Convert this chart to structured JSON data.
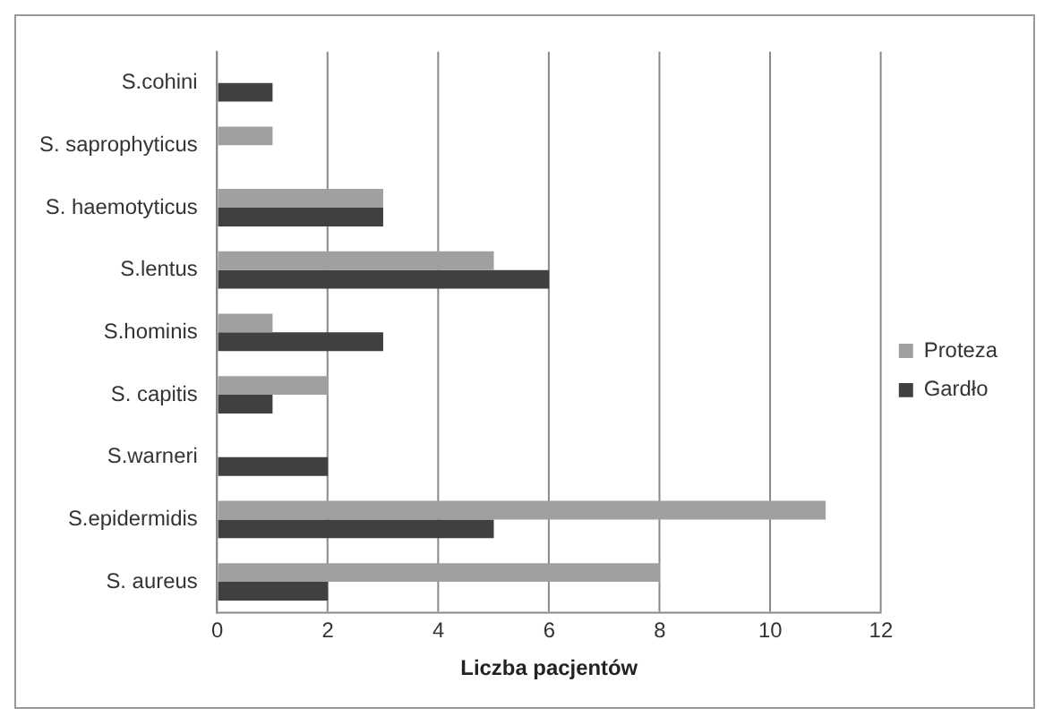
{
  "chart_data": {
    "type": "bar",
    "orientation": "horizontal",
    "xlabel": "Liczba pacjentów",
    "categories": [
      "S.cohini",
      "S. saprophyticus",
      "S. haemotyticus",
      "S.lentus",
      "S.hominis",
      "S. capitis",
      "S.warneri",
      "S.epidermidis",
      "S. aureus"
    ],
    "series": [
      {
        "name": "Proteza",
        "color": "#a0a0a0",
        "values": [
          0,
          1,
          3,
          5,
          1,
          2,
          0,
          11,
          8
        ]
      },
      {
        "name": "Gardło",
        "color": "#404040",
        "values": [
          1,
          0,
          3,
          6,
          3,
          1,
          2,
          5,
          2
        ]
      }
    ],
    "xlim": [
      0,
      12
    ],
    "xticks": [
      0,
      2,
      4,
      6,
      8,
      10,
      12
    ],
    "grid": "x",
    "legend": "right"
  }
}
